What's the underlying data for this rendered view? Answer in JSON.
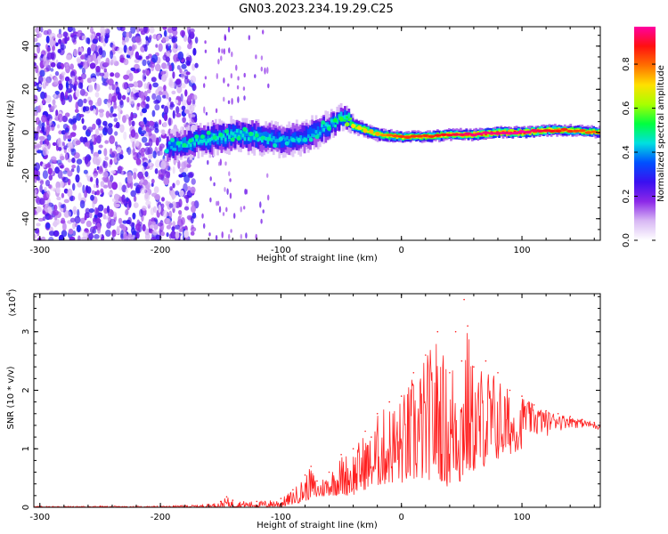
{
  "title": "GN03.2023.234.19.29.C25",
  "chart_data": [
    {
      "type": "heatmap",
      "xlabel": "Height of straight line (km)",
      "ylabel": "Frequency (Hz)",
      "xlim": [
        -305,
        165
      ],
      "ylim": [
        -50,
        49
      ],
      "x_ticks": [
        -300,
        -200,
        -100,
        0,
        100
      ],
      "y_ticks": [
        -40,
        -20,
        0,
        20,
        40
      ],
      "colorbar": {
        "label": "Normalized spectral amplitude",
        "range": [
          0,
          0.97
        ],
        "ticks": [
          0.0,
          0.2,
          0.4,
          0.6,
          0.8
        ],
        "colormap": [
          "#ffffff",
          "#d8b8f4",
          "#8c28e8",
          "#3a10f0",
          "#0050ff",
          "#00e0e0",
          "#00ff40",
          "#a8ff00",
          "#ffe000",
          "#ff7000",
          "#ff1010",
          "#ff00a0"
        ]
      },
      "ridge": {
        "x": [
          -195,
          -180,
          -160,
          -140,
          -120,
          -100,
          -80,
          -60,
          -50,
          -45,
          -40,
          -20,
          0,
          20,
          40,
          60,
          80,
          100,
          120,
          140,
          165
        ],
        "y": [
          -7,
          -5,
          -3,
          -1,
          -2,
          -4,
          -2,
          3,
          7,
          6,
          3,
          -1,
          -2,
          -2,
          -1,
          -1,
          0,
          0,
          1,
          1,
          0
        ],
        "peak_amplitude": [
          0.45,
          0.5,
          0.5,
          0.5,
          0.5,
          0.45,
          0.45,
          0.5,
          0.55,
          0.6,
          0.7,
          0.75,
          0.85,
          0.85,
          0.9,
          0.95,
          0.95,
          0.97,
          0.9,
          0.85,
          0.8
        ],
        "width_hz": [
          12,
          12,
          14,
          14,
          14,
          14,
          14,
          12,
          10,
          9,
          7,
          6,
          5,
          5,
          5,
          5,
          5,
          5,
          5,
          5,
          5
        ]
      },
      "noise_region": {
        "x_range": [
          -305,
          -170
        ],
        "y_range": [
          -50,
          49
        ],
        "amplitude": [
          0.05,
          0.3
        ]
      }
    },
    {
      "type": "line",
      "xlabel": "Height of straight line (km)",
      "ylabel": "SNR (10 * v/v)",
      "y_multiplier": "(x10",
      "y_multiplier_exp": "4",
      "y_multiplier_close": ")",
      "xlim": [
        -305,
        165
      ],
      "ylim": [
        0,
        3.65
      ],
      "x_ticks": [
        -300,
        -200,
        -100,
        0,
        100
      ],
      "y_ticks": [
        0,
        1,
        2,
        3
      ],
      "color": "#ff2020",
      "series": [
        {
          "x": [
            -305,
            -250,
            -200,
            -160,
            -150,
            -145,
            -140,
            -120,
            -100,
            -90,
            -80,
            -75,
            -70,
            -60,
            -50,
            -40,
            -30,
            -25,
            -20,
            -10,
            0,
            10,
            20,
            30,
            40,
            45,
            50,
            52,
            55,
            60,
            70,
            80,
            90,
            100,
            110,
            120,
            130,
            140,
            150,
            160,
            165
          ],
          "y": [
            0.02,
            0.02,
            0.02,
            0.05,
            0.1,
            0.18,
            0.12,
            0.1,
            0.15,
            0.3,
            0.55,
            0.7,
            0.45,
            0.6,
            0.9,
            1.0,
            1.3,
            1.2,
            1.6,
            1.8,
            1.9,
            2.3,
            2.6,
            3.0,
            2.3,
            3.0,
            2.5,
            3.55,
            3.1,
            2.4,
            2.5,
            2.3,
            2.0,
            1.9,
            1.75,
            1.65,
            1.6,
            1.55,
            1.5,
            1.45,
            1.45
          ],
          "min_y": [
            0.0,
            0.0,
            0.0,
            0.0,
            0.0,
            0.0,
            0.0,
            0.0,
            0.0,
            0.05,
            0.1,
            0.15,
            0.15,
            0.2,
            0.2,
            0.2,
            0.3,
            0.35,
            0.35,
            0.4,
            0.4,
            0.4,
            0.45,
            0.5,
            0.3,
            0.5,
            0.3,
            0.5,
            0.5,
            0.6,
            0.7,
            0.8,
            0.9,
            1.0,
            1.1,
            1.2,
            1.3,
            1.35,
            1.35,
            1.3,
            1.3
          ]
        }
      ]
    }
  ]
}
